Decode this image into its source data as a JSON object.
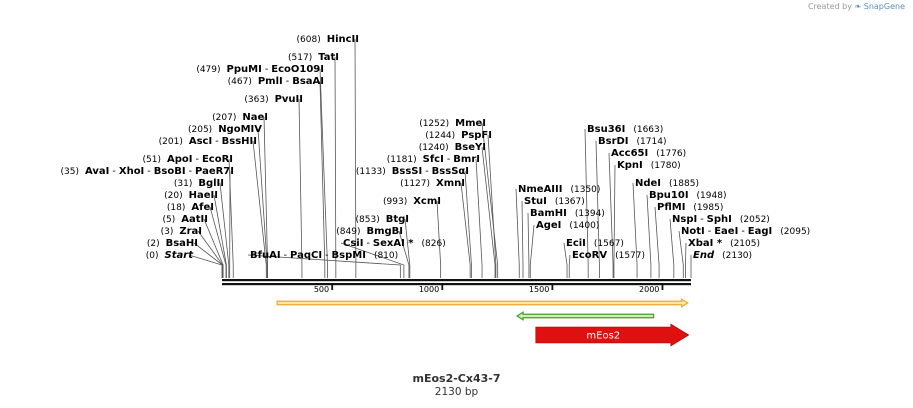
{
  "watermark": {
    "prefix": "Created by",
    "brand": "SnapGene"
  },
  "sequence": {
    "name": "mEos2-Cx43-7",
    "length_label": "2130 bp",
    "length": 2130
  },
  "axis": {
    "ticks": [
      500,
      1000,
      1500,
      2000
    ],
    "tick_labels": [
      "500",
      "1000",
      "1500",
      "2000"
    ]
  },
  "features": [
    {
      "name": "",
      "start": 250,
      "end": 2115,
      "color": "#f0a830",
      "fill": "#f7e7a8",
      "direction": "forward"
    },
    {
      "name": "",
      "start": 1340,
      "end": 1960,
      "color": "#4c9a2a",
      "fill": "#c9f0b8",
      "direction": "reverse"
    },
    {
      "name": "mEos2",
      "start": 1425,
      "end": 2120,
      "color": "#e01010",
      "fill": "#e01010",
      "direction": "forward"
    }
  ],
  "left_labels": [
    {
      "pos_text": "(608)",
      "parts": [
        {
          "t": "HincII",
          "c": "enz"
        }
      ],
      "site": 608
    },
    {
      "pos_text": "(517)",
      "parts": [
        {
          "t": "TatI",
          "c": "enz"
        }
      ],
      "site": 517
    },
    {
      "pos_text": "(479)",
      "parts": [
        {
          "t": "PpuMI",
          "c": "enz"
        },
        {
          "t": " - ",
          "c": "sep"
        },
        {
          "t": "EcoO109I",
          "c": "enz"
        }
      ],
      "site": 479
    },
    {
      "pos_text": "(467)",
      "parts": [
        {
          "t": "PmlI",
          "c": "enz"
        },
        {
          "t": " - ",
          "c": "sep"
        },
        {
          "t": "BsaAI",
          "c": "enz"
        }
      ],
      "site": 467
    },
    {
      "pos_text": "(363)",
      "parts": [
        {
          "t": "PvuII",
          "c": "enz"
        }
      ],
      "site": 363
    },
    {
      "pos_text": "(207)",
      "parts": [
        {
          "t": "NaeI",
          "c": "enz"
        }
      ],
      "site": 207
    },
    {
      "pos_text": "(205)",
      "parts": [
        {
          "t": "NgoMIV",
          "c": "enz"
        }
      ],
      "site": 205
    },
    {
      "pos_text": "(201)",
      "parts": [
        {
          "t": "AscI",
          "c": "enz"
        },
        {
          "t": " - ",
          "c": "sep"
        },
        {
          "t": "BssHII",
          "c": "enz"
        }
      ],
      "site": 201
    },
    {
      "pos_text": "(51)",
      "parts": [
        {
          "t": "ApoI",
          "c": "enz"
        },
        {
          "t": " - ",
          "c": "sep"
        },
        {
          "t": "EcoRI",
          "c": "enz"
        }
      ],
      "site": 51
    },
    {
      "pos_text": "(35)",
      "parts": [
        {
          "t": "AvaI",
          "c": "enz"
        },
        {
          "t": " - ",
          "c": "sep"
        },
        {
          "t": "XhoI",
          "c": "enz"
        },
        {
          "t": " - ",
          "c": "sep"
        },
        {
          "t": "BsoBI",
          "c": "enz"
        },
        {
          "t": " - ",
          "c": "sep"
        },
        {
          "t": "PaeR7I",
          "c": "enz"
        }
      ],
      "site": 35
    },
    {
      "pos_text": "(31)",
      "parts": [
        {
          "t": "BglII",
          "c": "enz"
        }
      ],
      "site": 31
    },
    {
      "pos_text": "(20)",
      "parts": [
        {
          "t": "HaeII",
          "c": "enz"
        }
      ],
      "site": 20
    },
    {
      "pos_text": "(18)",
      "parts": [
        {
          "t": "AfeI",
          "c": "enz"
        }
      ],
      "site": 18
    },
    {
      "pos_text": "(5)",
      "parts": [
        {
          "t": "AatII",
          "c": "enz"
        }
      ],
      "site": 5
    },
    {
      "pos_text": "(3)",
      "parts": [
        {
          "t": "ZraI",
          "c": "enz"
        }
      ],
      "site": 3
    },
    {
      "pos_text": "(2)",
      "parts": [
        {
          "t": "BsaHI",
          "c": "enz"
        }
      ],
      "site": 2
    },
    {
      "pos_text": "(0)",
      "parts": [
        {
          "t": "Start",
          "c": "ital"
        }
      ],
      "site": 0
    },
    {
      "pos_text": "(1252)",
      "parts": [
        {
          "t": "MmeI",
          "c": "enz"
        }
      ],
      "site": 1252
    },
    {
      "pos_text": "(1244)",
      "parts": [
        {
          "t": "PspFI",
          "c": "enz"
        }
      ],
      "site": 1244
    },
    {
      "pos_text": "(1240)",
      "parts": [
        {
          "t": "BseYI",
          "c": "enz"
        }
      ],
      "site": 1240
    },
    {
      "pos_text": "(1181)",
      "parts": [
        {
          "t": "SfcI",
          "c": "enz"
        },
        {
          "t": " - ",
          "c": "sep"
        },
        {
          "t": "BmrI",
          "c": "enz"
        }
      ],
      "site": 1181
    },
    {
      "pos_text": "(1133)",
      "parts": [
        {
          "t": "BssSI",
          "c": "enz"
        },
        {
          "t": " - ",
          "c": "sep"
        },
        {
          "t": "BssSαI",
          "c": "enz"
        }
      ],
      "site": 1133
    },
    {
      "pos_text": "(1127)",
      "parts": [
        {
          "t": "XmnI",
          "c": "enz"
        }
      ],
      "site": 1127
    },
    {
      "pos_text": "(993)",
      "parts": [
        {
          "t": "XcmI",
          "c": "enz"
        }
      ],
      "site": 993
    },
    {
      "pos_text": "(853)",
      "parts": [
        {
          "t": "BtgI",
          "c": "enz"
        }
      ],
      "site": 853
    },
    {
      "pos_text": "(849)",
      "parts": [
        {
          "t": "BmgBI",
          "c": "enz"
        }
      ],
      "site": 849
    }
  ],
  "right_labels": [
    {
      "pos_text": "(1663)",
      "parts": [
        {
          "t": "Bsu36I",
          "c": "enz"
        }
      ],
      "site": 1663
    },
    {
      "pos_text": "(1714)",
      "parts": [
        {
          "t": "BsrDI",
          "c": "enz"
        }
      ],
      "site": 1714
    },
    {
      "pos_text": "(1776)",
      "parts": [
        {
          "t": "Acc65I",
          "c": "enz"
        }
      ],
      "site": 1776
    },
    {
      "pos_text": "(1780)",
      "parts": [
        {
          "t": "KpnI",
          "c": "enz"
        }
      ],
      "site": 1780
    },
    {
      "pos_text": "(1885)",
      "parts": [
        {
          "t": "NdeI",
          "c": "enz"
        }
      ],
      "site": 1885
    },
    {
      "pos_text": "(1350)",
      "parts": [
        {
          "t": "NmeAIII",
          "c": "enz"
        }
      ],
      "site": 1350
    },
    {
      "pos_text": "(1948)",
      "parts": [
        {
          "t": "Bpu10I",
          "c": "enz"
        }
      ],
      "site": 1948
    },
    {
      "pos_text": "(1367)",
      "parts": [
        {
          "t": "StuI",
          "c": "enz"
        }
      ],
      "site": 1367
    },
    {
      "pos_text": "(1985)",
      "parts": [
        {
          "t": "PflMI",
          "c": "enz"
        }
      ],
      "site": 1985
    },
    {
      "pos_text": "(1394)",
      "parts": [
        {
          "t": "BamHI",
          "c": "enz"
        }
      ],
      "site": 1394
    },
    {
      "pos_text": "(2052)",
      "parts": [
        {
          "t": "NspI",
          "c": "enz"
        },
        {
          "t": " - ",
          "c": "sep"
        },
        {
          "t": "SphI",
          "c": "enz"
        }
      ],
      "site": 2052
    },
    {
      "pos_text": "(1400)",
      "parts": [
        {
          "t": "AgeI",
          "c": "enz"
        }
      ],
      "site": 1400
    },
    {
      "pos_text": "(2095)",
      "parts": [
        {
          "t": "NotI",
          "c": "enz"
        },
        {
          "t": " - ",
          "c": "sep"
        },
        {
          "t": "EaeI",
          "c": "enz"
        },
        {
          "t": " - ",
          "c": "sep"
        },
        {
          "t": "EagI",
          "c": "enz"
        }
      ],
      "site": 2095
    },
    {
      "pos_text": "(1567)",
      "parts": [
        {
          "t": "EciI",
          "c": "enz"
        }
      ],
      "site": 1567
    },
    {
      "pos_text": "(2105)",
      "parts": [
        {
          "t": "XbaI",
          "c": "enz"
        },
        {
          "t": " *",
          "c": "enz"
        }
      ],
      "site": 2105
    },
    {
      "pos_text": "(1577)",
      "parts": [
        {
          "t": "EcoRV",
          "c": "enz"
        }
      ],
      "site": 1577
    },
    {
      "pos_text": "(2130)",
      "parts": [
        {
          "t": "End",
          "c": "ital"
        }
      ],
      "site": 2130
    },
    {
      "pos_text": "(810)",
      "parts": [
        {
          "t": "BfuAI",
          "c": "enz"
        },
        {
          "t": " - ",
          "c": "sep"
        },
        {
          "t": "PaqCI",
          "c": "enz"
        },
        {
          "t": " - ",
          "c": "sep"
        },
        {
          "t": "BspMI",
          "c": "enz"
        }
      ],
      "site": 810
    },
    {
      "pos_text": "(826)",
      "parts": [
        {
          "t": "CsiI",
          "c": "enz"
        },
        {
          "t": " - ",
          "c": "sep"
        },
        {
          "t": "SexAI",
          "c": "enz"
        },
        {
          "t": " *",
          "c": "enz"
        }
      ],
      "site": 826
    }
  ]
}
